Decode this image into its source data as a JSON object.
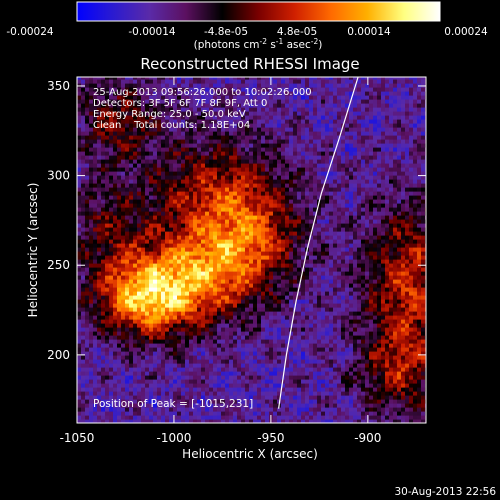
{
  "colorbar": {
    "ticks": [
      "-0.00024",
      "-0.00014",
      "-4.8e-05",
      "4.8e-05",
      "0.00014",
      "0.00024"
    ],
    "unit_main": "(photons cm",
    "unit_exp1": "-2",
    "unit_mid": " s",
    "unit_exp2": "-1",
    "unit_tail": " asec",
    "unit_exp3": "-2",
    "unit_close": ")",
    "stops": [
      "#0000ff",
      "#2b1bd0",
      "#5a2aa8",
      "#5b1060",
      "#000000",
      "#7a0000",
      "#d02000",
      "#ff6a00",
      "#ffb000",
      "#ffff80",
      "#ffffff"
    ]
  },
  "annotations": {
    "time_range": "25-Aug-2013 09:56:26.000 to 10:02:26.000",
    "detectors": "Detectors: 3F 5F 6F 7F 8F 9F, Att 0",
    "energy": "Energy Range: 25.0 - 50.0 keV",
    "clean": "Clean    Total counts: 1.18E+04",
    "peak": "Position of Peak = [-1015,231]"
  },
  "footer_date": "30-Aug-2013 22:56",
  "chart_data": {
    "type": "heatmap",
    "title": "Reconstructed RHESSI Image",
    "xlabel": "Heliocentric X (arcsec)",
    "ylabel": "Heliocentric Y (arcsec)",
    "xlim": [
      -1050,
      -870
    ],
    "ylim": [
      162,
      355
    ],
    "xticks": [
      -1050,
      -1000,
      -950,
      -900
    ],
    "yticks": [
      200,
      250,
      300,
      350
    ],
    "xtick_labels": [
      "-1050",
      "-1000",
      "-950",
      "-900"
    ],
    "ytick_labels": [
      "200",
      "250",
      "300",
      "350"
    ],
    "colorbar_range": [
      -0.00024,
      0.00024
    ],
    "peak": [
      -1015,
      231
    ],
    "limb_curve": [
      [
        -905,
        355
      ],
      [
        -915,
        320
      ],
      [
        -924,
        290
      ],
      [
        -931,
        260
      ],
      [
        -937,
        230
      ],
      [
        -942,
        200
      ],
      [
        -946,
        170
      ]
    ],
    "sources": [
      {
        "x": -1015,
        "y": 231,
        "amp": 1.0,
        "sx": 18,
        "sy": 16
      },
      {
        "x": -985,
        "y": 245,
        "amp": 0.7,
        "sx": 22,
        "sy": 18
      },
      {
        "x": -980,
        "y": 290,
        "amp": 0.55,
        "sx": 24,
        "sy": 22
      },
      {
        "x": -960,
        "y": 265,
        "amp": 0.5,
        "sx": 18,
        "sy": 20
      },
      {
        "x": -1030,
        "y": 330,
        "amp": 0.45,
        "sx": 15,
        "sy": 15
      },
      {
        "x": -880,
        "y": 240,
        "amp": 0.65,
        "sx": 16,
        "sy": 30
      },
      {
        "x": -885,
        "y": 190,
        "amp": 0.45,
        "sx": 15,
        "sy": 18
      },
      {
        "x": -1035,
        "y": 270,
        "amp": 0.35,
        "sx": 14,
        "sy": 20
      }
    ]
  }
}
